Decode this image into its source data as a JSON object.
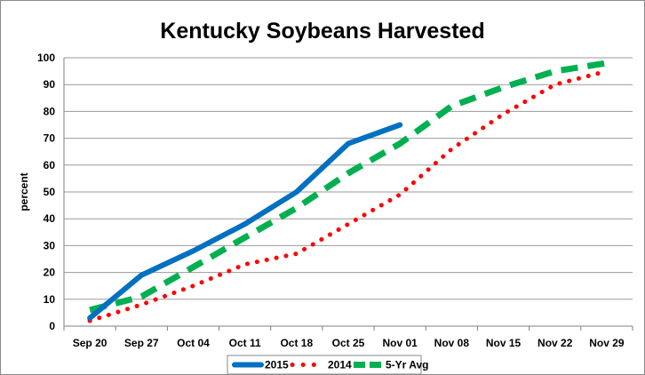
{
  "chart_data": {
    "type": "line",
    "title": "Kentucky Soybeans Harvested",
    "xlabel": "",
    "ylabel": "percent",
    "categories": [
      "Sep 20",
      "Sep 27",
      "Oct 04",
      "Oct 11",
      "Oct 18",
      "Oct 25",
      "Nov 01",
      "Nov 08",
      "Nov 15",
      "Nov 22",
      "Nov 29"
    ],
    "ylim": [
      0,
      100
    ],
    "yticks": [
      0,
      10,
      20,
      30,
      40,
      50,
      60,
      70,
      80,
      90,
      100
    ],
    "grid": "horizontal",
    "legend_position": "bottom",
    "series": [
      {
        "name": "2015",
        "color": "#0070C0",
        "style": "solid",
        "values": [
          3,
          19,
          28,
          38,
          50,
          68,
          75,
          null,
          null,
          null,
          null
        ]
      },
      {
        "name": "2014",
        "color": "#FF0000",
        "style": "dotted",
        "values": [
          2,
          8,
          15,
          23,
          27,
          38,
          49,
          66,
          79,
          90,
          95
        ]
      },
      {
        "name": "5-Yr Avg",
        "color": "#00B050",
        "style": "dashed",
        "values": [
          6,
          11,
          22,
          33,
          44,
          57,
          68,
          82,
          89,
          95,
          98
        ]
      }
    ]
  }
}
